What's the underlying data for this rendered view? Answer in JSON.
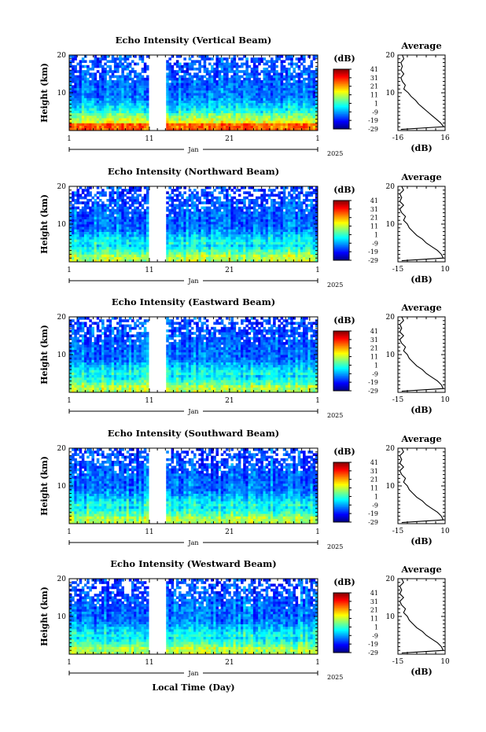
{
  "figure": {
    "month_label": "Jan",
    "year_label": "2025",
    "x_axis_title": "Local Time (Day)",
    "colorbar_unit": "(dB)",
    "profile_unit": "(dB)",
    "profile_title": "Average",
    "y_axis_title": "Height (km)"
  },
  "chart_data": [
    {
      "type": "heatmap",
      "title": "Echo Intensity (Vertical Beam)",
      "xlabel": "",
      "ylabel": "Height (km)",
      "x_tick_labels": [
        "1",
        "11",
        "21",
        "1"
      ],
      "y_tick_labels": [
        "10",
        "20"
      ],
      "ylim": [
        0,
        20
      ],
      "colorbar_ticks": [
        "41",
        "31",
        "21",
        "11",
        "1",
        "-9",
        "-19",
        "-29"
      ],
      "colorbar_range": [
        -29,
        41
      ],
      "data_gaps_day": [
        [
          11,
          13
        ]
      ],
      "profile": {
        "title": "Average",
        "xlabel": "(dB)",
        "xlim": [
          -16,
          16
        ],
        "x_tick_labels": [
          "-16",
          "16"
        ],
        "y_tick_labels": [
          "10",
          "20"
        ],
        "height_km": [
          0.3,
          1,
          2,
          3,
          4,
          5,
          6,
          7,
          8,
          9,
          10,
          11,
          12,
          13,
          14,
          15,
          16,
          17,
          18,
          19,
          20
        ],
        "db": [
          -14,
          15,
          13,
          10,
          7,
          4,
          1,
          -2,
          -4,
          -7,
          -9,
          -12,
          -11,
          -13,
          -14,
          -12,
          -14,
          -13,
          -14,
          -12,
          -13
        ]
      }
    },
    {
      "type": "heatmap",
      "title": "Echo Intensity (Northward Beam)",
      "xlabel": "",
      "ylabel": "Height (km)",
      "x_tick_labels": [
        "1",
        "11",
        "21",
        "1"
      ],
      "y_tick_labels": [
        "10",
        "20"
      ],
      "ylim": [
        0,
        20
      ],
      "colorbar_ticks": [
        "41",
        "31",
        "21",
        "11",
        "1",
        "-9",
        "-19",
        "-29"
      ],
      "colorbar_range": [
        -29,
        41
      ],
      "data_gaps_day": [
        [
          11,
          13
        ]
      ],
      "profile": {
        "title": "Average",
        "xlabel": "(dB)",
        "xlim": [
          -15,
          10
        ],
        "x_tick_labels": [
          "-15",
          "10"
        ],
        "y_tick_labels": [
          "10",
          "20"
        ],
        "height_km": [
          0.3,
          1,
          2,
          3,
          4,
          5,
          6,
          7,
          8,
          9,
          10,
          11,
          12,
          13,
          14,
          15,
          16,
          17,
          18,
          19,
          20
        ],
        "db": [
          -13,
          9,
          8,
          6,
          3,
          0,
          -2,
          -5,
          -7,
          -9,
          -10,
          -12,
          -11,
          -13,
          -14,
          -12,
          -14,
          -13,
          -14,
          -12,
          -13
        ]
      }
    },
    {
      "type": "heatmap",
      "title": "Echo Intensity (Eastward Beam)",
      "xlabel": "",
      "ylabel": "Height (km)",
      "x_tick_labels": [
        "1",
        "11",
        "21",
        "1"
      ],
      "y_tick_labels": [
        "10",
        "20"
      ],
      "ylim": [
        0,
        20
      ],
      "colorbar_ticks": [
        "41",
        "31",
        "21",
        "11",
        "1",
        "-9",
        "-19",
        "-29"
      ],
      "colorbar_range": [
        -29,
        41
      ],
      "data_gaps_day": [
        [
          11,
          13
        ]
      ],
      "profile": {
        "title": "Average",
        "xlabel": "(dB)",
        "xlim": [
          -15,
          10
        ],
        "x_tick_labels": [
          "-15",
          "10"
        ],
        "y_tick_labels": [
          "10",
          "20"
        ],
        "height_km": [
          0.3,
          1,
          2,
          3,
          4,
          5,
          6,
          7,
          8,
          9,
          10,
          11,
          12,
          13,
          14,
          15,
          16,
          17,
          18,
          19,
          20
        ],
        "db": [
          -13,
          9,
          8,
          6,
          3,
          0,
          -2,
          -5,
          -7,
          -9,
          -10,
          -12,
          -11,
          -13,
          -14,
          -12,
          -14,
          -13,
          -14,
          -12,
          -13
        ]
      }
    },
    {
      "type": "heatmap",
      "title": "Echo Intensity (Southward Beam)",
      "xlabel": "",
      "ylabel": "Height (km)",
      "x_tick_labels": [
        "1",
        "11",
        "21",
        "1"
      ],
      "y_tick_labels": [
        "10",
        "20"
      ],
      "ylim": [
        0,
        20
      ],
      "colorbar_ticks": [
        "41",
        "31",
        "21",
        "11",
        "1",
        "-9",
        "-19",
        "-29"
      ],
      "colorbar_range": [
        -29,
        41
      ],
      "data_gaps_day": [
        [
          11,
          13
        ]
      ],
      "profile": {
        "title": "Average",
        "xlabel": "(dB)",
        "xlim": [
          -15,
          10
        ],
        "x_tick_labels": [
          "-15",
          "10"
        ],
        "y_tick_labels": [
          "10",
          "20"
        ],
        "height_km": [
          0.3,
          1,
          2,
          3,
          4,
          5,
          6,
          7,
          8,
          9,
          10,
          11,
          12,
          13,
          14,
          15,
          16,
          17,
          18,
          19,
          20
        ],
        "db": [
          -13,
          9,
          8,
          6,
          3,
          0,
          -2,
          -5,
          -7,
          -9,
          -10,
          -12,
          -11,
          -13,
          -14,
          -12,
          -14,
          -13,
          -14,
          -12,
          -13
        ]
      }
    },
    {
      "type": "heatmap",
      "title": "Echo Intensity (Westward Beam)",
      "xlabel": "Local Time (Day)",
      "ylabel": "Height (km)",
      "x_tick_labels": [
        "1",
        "11",
        "21",
        "1"
      ],
      "y_tick_labels": [
        "10",
        "20"
      ],
      "ylim": [
        0,
        20
      ],
      "colorbar_ticks": [
        "41",
        "31",
        "21",
        "11",
        "1",
        "-9",
        "-19",
        "-29"
      ],
      "colorbar_range": [
        -29,
        41
      ],
      "data_gaps_day": [
        [
          11,
          13
        ]
      ],
      "profile": {
        "title": "Average",
        "xlabel": "(dB)",
        "xlim": [
          -15,
          10
        ],
        "x_tick_labels": [
          "-15",
          "10"
        ],
        "y_tick_labels": [
          "10",
          "20"
        ],
        "height_km": [
          0.3,
          1,
          2,
          3,
          4,
          5,
          6,
          7,
          8,
          9,
          10,
          11,
          12,
          13,
          14,
          15,
          16,
          17,
          18,
          19,
          20
        ],
        "db": [
          -13,
          9,
          8,
          6,
          3,
          0,
          -2,
          -5,
          -7,
          -9,
          -10,
          -12,
          -11,
          -13,
          -14,
          -12,
          -14,
          -13,
          -14,
          -12,
          -13
        ]
      }
    }
  ]
}
